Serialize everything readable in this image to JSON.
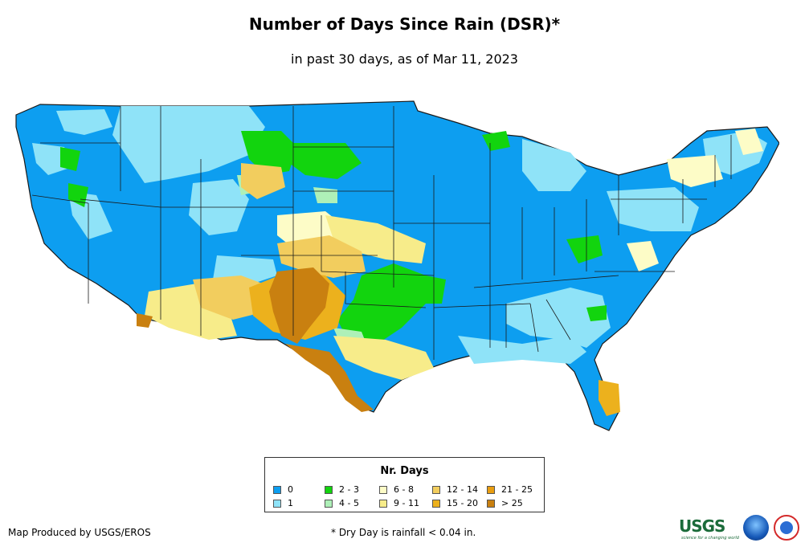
{
  "header": {
    "title": "Number of Days Since Rain (DSR)*",
    "subtitle": "in past 30 days, as of Mar 11, 2023"
  },
  "legend": {
    "title": "Nr. Days",
    "items": [
      {
        "label": "0",
        "color": "#0d9ef0"
      },
      {
        "label": "1",
        "color": "#8fe3f8"
      },
      {
        "label": "2 - 3",
        "color": "#12d40e"
      },
      {
        "label": "4 - 5",
        "color": "#aef0b8"
      },
      {
        "label": "6 - 8",
        "color": "#fdfcc7"
      },
      {
        "label": "9 - 11",
        "color": "#f7ec8a"
      },
      {
        "label": "12 - 14",
        "color": "#f2cd5e"
      },
      {
        "label": "15 - 20",
        "color": "#ecb11d"
      },
      {
        "label": "21 - 25",
        "color": "#e99d10"
      },
      {
        "label": "> 25",
        "color": "#c98010"
      }
    ]
  },
  "footer": {
    "credit": "Map Produced by USGS/EROS",
    "footnote": "* Dry Day is rainfall < 0.04 in."
  },
  "logos": {
    "usgs": "USGS",
    "usgs_tagline": "science for a changing world"
  },
  "colors": {
    "state_border": "#1a1a1a"
  }
}
